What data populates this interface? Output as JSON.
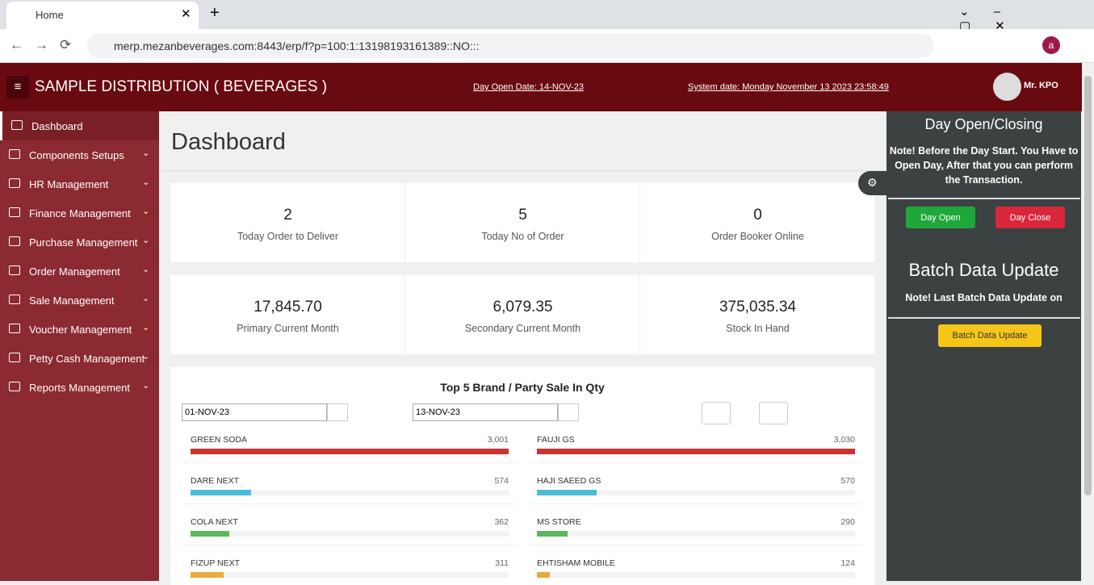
{
  "browser": {
    "tab_title": "Home",
    "url": "merp.mezanbeverages.com:8443/erp/f?p=100:1:13198193161389::NO:::",
    "profile_initial": "a"
  },
  "header": {
    "title": "SAMPLE DISTRIBUTION ( BEVERAGES )",
    "day_open_date": "Day Open Date: 14-NOV-23",
    "system_date": "System date: Monday November 13 2023 23:58:49",
    "user": "Mr. KPO"
  },
  "sidebar": {
    "items": [
      "Dashboard",
      "Components Setups",
      "HR Management",
      "Finance Management",
      "Purchase Management",
      "Order Management",
      "Sale Management",
      "Voucher Management",
      "Petty Cash Management",
      "Reports Management"
    ]
  },
  "page_title": "Dashboard",
  "stats": [
    [
      {
        "value": "2",
        "label": "Today Order to Deliver"
      },
      {
        "value": "5",
        "label": "Today No of Order"
      },
      {
        "value": "0",
        "label": "Order Booker Online"
      }
    ],
    [
      {
        "value": "17,845.70",
        "label": "Primary Current Month"
      },
      {
        "value": "6,079.35",
        "label": "Secondary Current Month"
      },
      {
        "value": "375,035.34",
        "label": "Stock In Hand"
      }
    ]
  ],
  "top5": {
    "title": "Top 5 Brand / Party Sale In Qty",
    "from_date": "01-NOV-23",
    "to_date": "13-NOV-23",
    "brands": [
      {
        "name": "GREEN SODA",
        "value": 3001,
        "label": "3,001"
      },
      {
        "name": "DARE NEXT",
        "value": 574,
        "label": "574"
      },
      {
        "name": "COLA NEXT",
        "value": 362,
        "label": "362"
      },
      {
        "name": "FIZUP NEXT",
        "value": 311,
        "label": "311"
      }
    ],
    "parties": [
      {
        "name": "FAUJI GS",
        "value": 3030,
        "label": "3,030"
      },
      {
        "name": "HAJI SAEED GS",
        "value": 570,
        "label": "570"
      },
      {
        "name": "MS STORE",
        "value": 290,
        "label": "290"
      },
      {
        "name": "EHTISHAM MOBILE",
        "value": 124,
        "label": "124"
      }
    ]
  },
  "right_panel": {
    "day_title": "Day Open/Closing",
    "day_note": "Note! Before the Day Start. You Have to Open Day, After that you can perform the Transaction.",
    "day_open": "Day Open",
    "day_close": "Day Close",
    "batch_title": "Batch Data Update",
    "batch_note": "Note! Last Batch Data Update on",
    "batch_button": "Batch Data Update"
  }
}
